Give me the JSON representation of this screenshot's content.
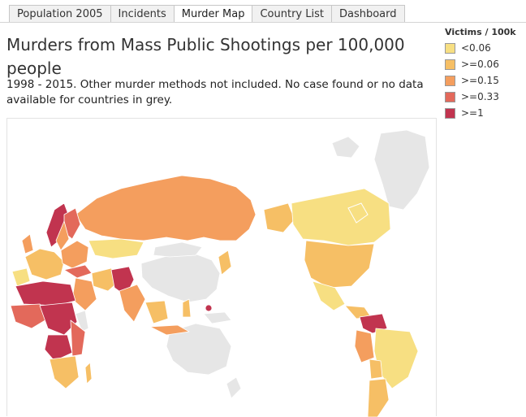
{
  "tabs": [
    {
      "label": "Population 2005",
      "active": false
    },
    {
      "label": "Incidents",
      "active": false
    },
    {
      "label": "Murder Map",
      "active": true
    },
    {
      "label": "Country List",
      "active": false
    },
    {
      "label": "Dashboard",
      "active": false
    }
  ],
  "title": "Murders from Mass Public Shootings per 100,000 people",
  "subtitle": "1998 - 2015.  Other murder methods not included.  No case found or no data available for countries in grey.",
  "legend": {
    "title": "Victims / 100k",
    "items": [
      {
        "label": "<0.06",
        "color": "#f7df82"
      },
      {
        "label": ">=0.06",
        "color": "#f6bf65"
      },
      {
        "label": ">=0.15",
        "color": "#f49e5e"
      },
      {
        "label": ">=0.33",
        "color": "#e3695b"
      },
      {
        "label": ">=1",
        "color": "#c1344f"
      }
    ]
  },
  "map": {
    "no_data_color": "#e6e6e6",
    "background": "#ffffff"
  }
}
